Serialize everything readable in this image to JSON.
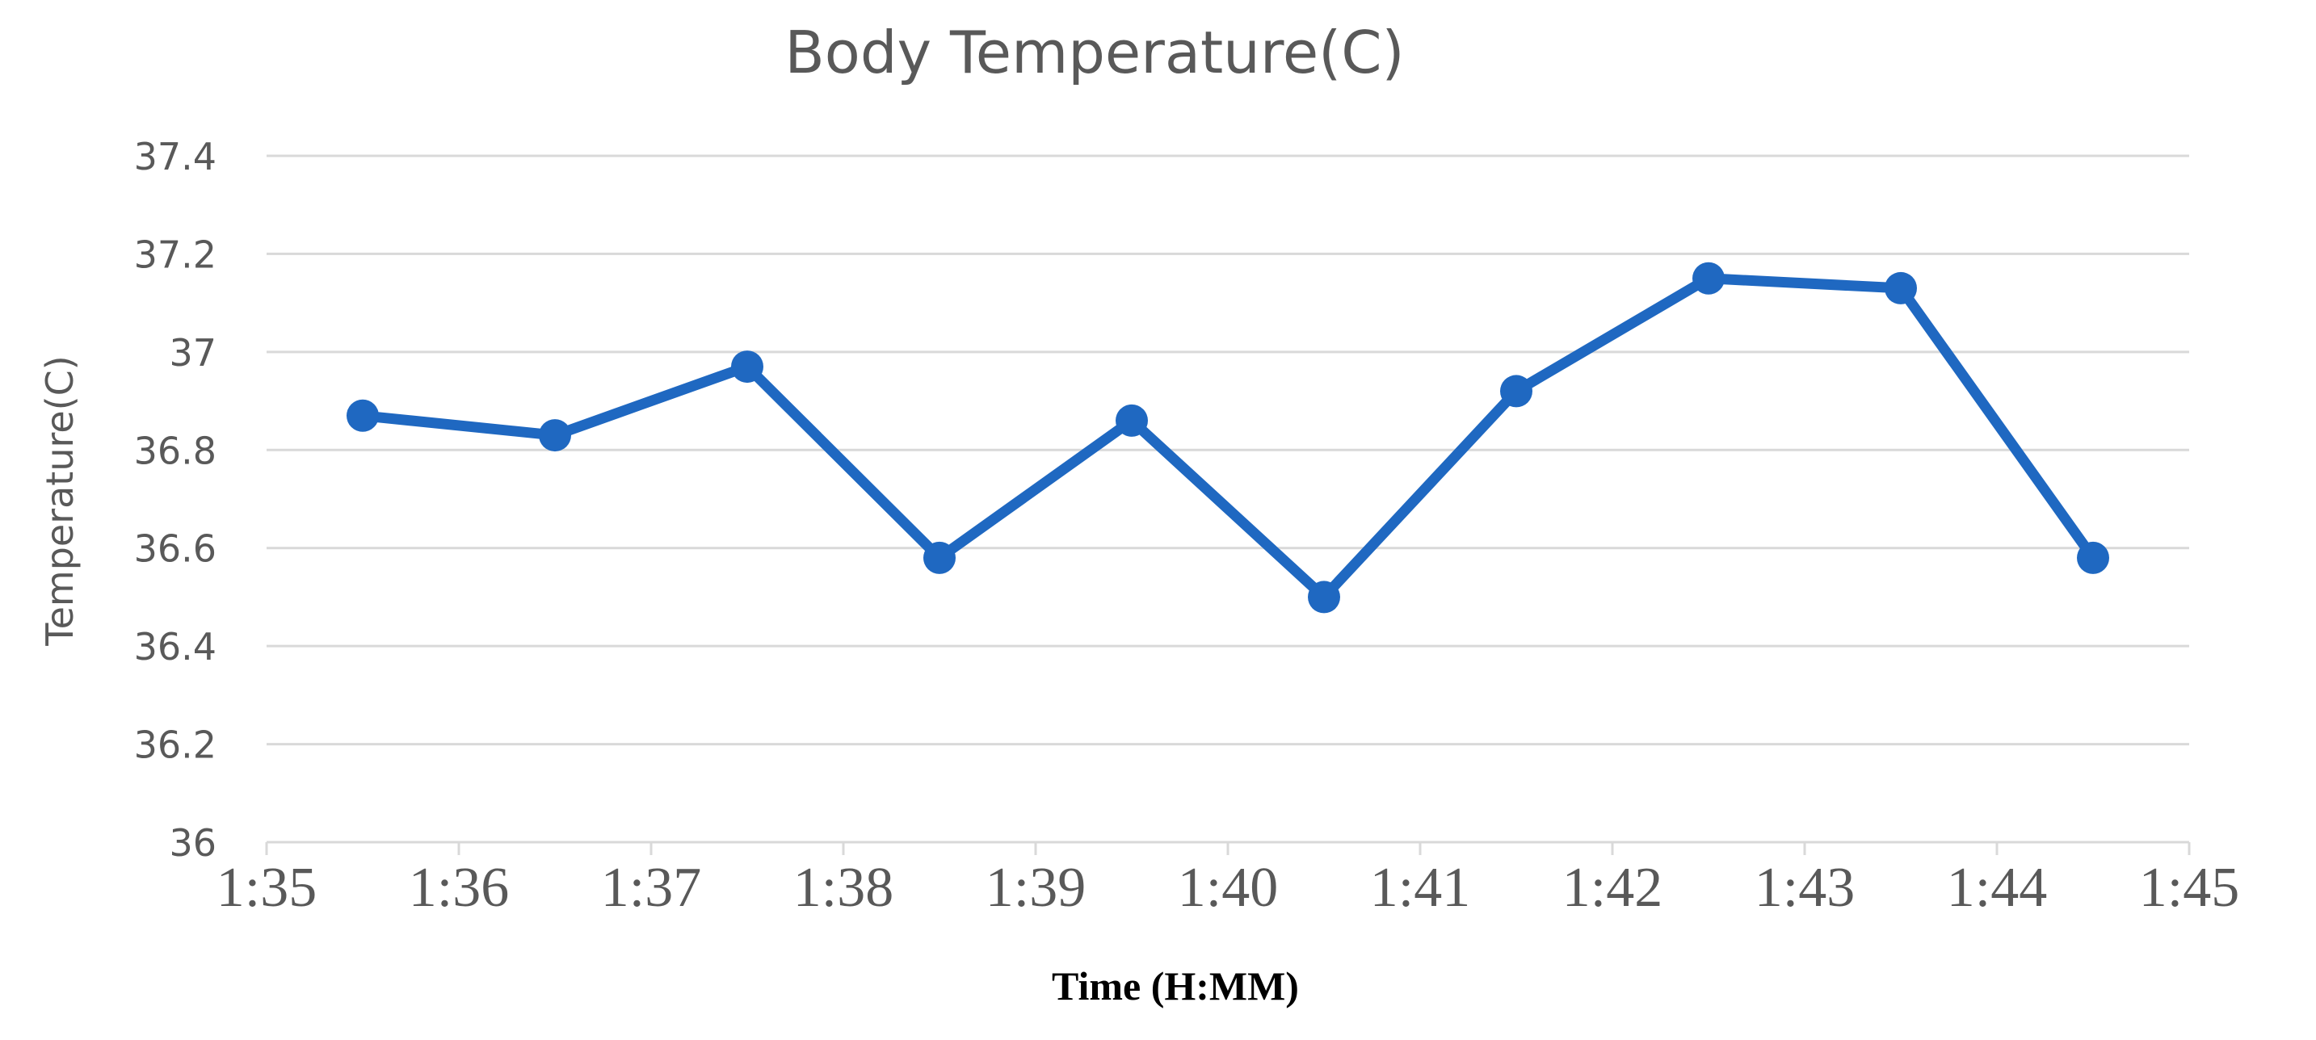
{
  "chart_data": {
    "type": "line",
    "title": "Body Temperature(C)",
    "xlabel": "Time (H:MM)",
    "ylabel": "Temperature(C)",
    "x_tick_labels": [
      "1:35",
      "1:36",
      "1:37",
      "1:38",
      "1:39",
      "1:40",
      "1:41",
      "1:42",
      "1:43",
      "1:44",
      "1:45"
    ],
    "y_tick_labels": [
      "36",
      "36.2",
      "36.4",
      "36.6",
      "36.8",
      "37",
      "37.2",
      "37.4"
    ],
    "xlim": [
      0,
      10
    ],
    "ylim": [
      36,
      37.4
    ],
    "grid": true,
    "series": [
      {
        "x": [
          0.5,
          1.5,
          2.5,
          3.5,
          4.5,
          5.5,
          6.5,
          7.5,
          8.5,
          9.5
        ],
        "values": [
          36.87,
          36.83,
          36.97,
          36.58,
          36.86,
          36.5,
          36.92,
          37.15,
          37.13,
          36.58
        ],
        "color": "#1f68c1"
      }
    ]
  }
}
